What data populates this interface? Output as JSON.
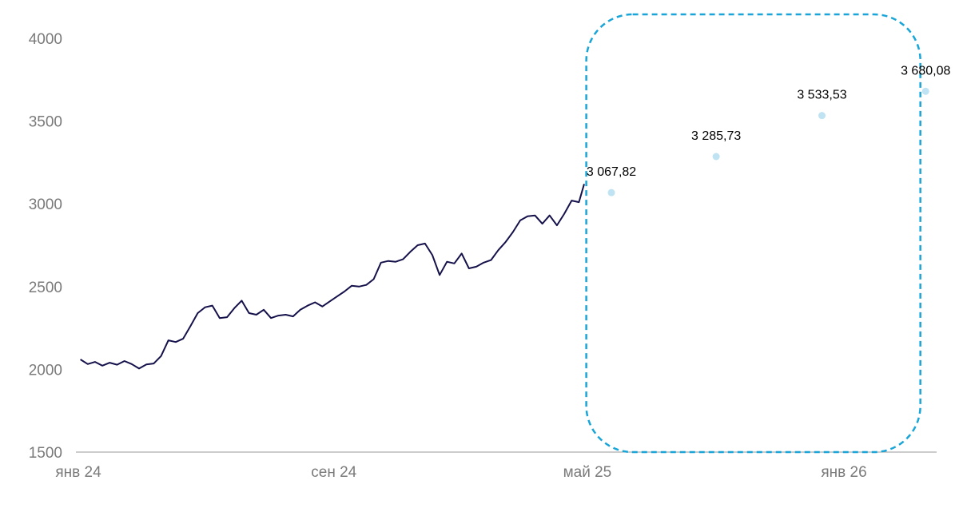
{
  "chart_data": {
    "type": "line",
    "title": "",
    "xlabel": "",
    "ylabel": "",
    "ylim": [
      1500,
      4000
    ],
    "yticks": [
      1500,
      2000,
      2500,
      3000,
      3500,
      4000
    ],
    "xticks": [
      {
        "label": "янв 24",
        "date": "2024-01-01"
      },
      {
        "label": "сен 24",
        "date": "2024-09-01"
      },
      {
        "label": "май 25",
        "date": "2025-05-01"
      },
      {
        "label": "янв 26",
        "date": "2026-01-01"
      }
    ],
    "xlim": [
      "2023-12-29",
      "2026-03-15"
    ],
    "grid": false,
    "colors": {
      "line": "#15114a",
      "forecast_point": "#bfe3f2",
      "forecast_box": "#1aa5d8",
      "axis": "#9a9a9a"
    },
    "series": [
      {
        "kind": "line",
        "points": [
          [
            "2024-01-03",
            2060
          ],
          [
            "2024-01-10",
            2032
          ],
          [
            "2024-01-17",
            2045
          ],
          [
            "2024-01-24",
            2022
          ],
          [
            "2024-01-31",
            2040
          ],
          [
            "2024-02-07",
            2028
          ],
          [
            "2024-02-14",
            2050
          ],
          [
            "2024-02-21",
            2032
          ],
          [
            "2024-02-28",
            2005
          ],
          [
            "2024-03-06",
            2030
          ],
          [
            "2024-03-13",
            2035
          ],
          [
            "2024-03-20",
            2080
          ],
          [
            "2024-03-27",
            2175
          ],
          [
            "2024-04-03",
            2165
          ],
          [
            "2024-04-10",
            2185
          ],
          [
            "2024-04-17",
            2260
          ],
          [
            "2024-04-24",
            2340
          ],
          [
            "2024-05-01",
            2375
          ],
          [
            "2024-05-08",
            2385
          ],
          [
            "2024-05-15",
            2310
          ],
          [
            "2024-05-22",
            2315
          ],
          [
            "2024-05-29",
            2370
          ],
          [
            "2024-06-05",
            2415
          ],
          [
            "2024-06-12",
            2340
          ],
          [
            "2024-06-19",
            2330
          ],
          [
            "2024-06-26",
            2360
          ],
          [
            "2024-07-03",
            2310
          ],
          [
            "2024-07-10",
            2325
          ],
          [
            "2024-07-17",
            2330
          ],
          [
            "2024-07-24",
            2320
          ],
          [
            "2024-07-31",
            2360
          ],
          [
            "2024-08-07",
            2385
          ],
          [
            "2024-08-14",
            2405
          ],
          [
            "2024-08-21",
            2380
          ],
          [
            "2024-08-28",
            2410
          ],
          [
            "2024-09-04",
            2440
          ],
          [
            "2024-09-11",
            2470
          ],
          [
            "2024-09-18",
            2505
          ],
          [
            "2024-09-25",
            2500
          ],
          [
            "2024-10-02",
            2510
          ],
          [
            "2024-10-09",
            2545
          ],
          [
            "2024-10-16",
            2645
          ],
          [
            "2024-10-23",
            2655
          ],
          [
            "2024-10-30",
            2650
          ],
          [
            "2024-11-06",
            2665
          ],
          [
            "2024-11-13",
            2710
          ],
          [
            "2024-11-20",
            2750
          ],
          [
            "2024-11-27",
            2760
          ],
          [
            "2024-12-04",
            2690
          ],
          [
            "2024-12-11",
            2570
          ],
          [
            "2024-12-18",
            2650
          ],
          [
            "2024-12-25",
            2640
          ],
          [
            "2025-01-01",
            2700
          ],
          [
            "2025-01-08",
            2610
          ],
          [
            "2025-01-15",
            2620
          ],
          [
            "2025-01-22",
            2645
          ],
          [
            "2025-01-29",
            2660
          ],
          [
            "2025-02-05",
            2720
          ],
          [
            "2025-02-12",
            2770
          ],
          [
            "2025-02-19",
            2830
          ],
          [
            "2025-02-26",
            2900
          ],
          [
            "2025-03-05",
            2925
          ],
          [
            "2025-03-12",
            2930
          ],
          [
            "2025-03-19",
            2880
          ],
          [
            "2025-03-26",
            2930
          ],
          [
            "2025-04-02",
            2870
          ],
          [
            "2025-04-09",
            2940
          ],
          [
            "2025-04-16",
            3020
          ],
          [
            "2025-04-23",
            3010
          ],
          [
            "2025-04-28",
            3120
          ]
        ]
      },
      {
        "kind": "forecast",
        "points": [
          {
            "x": "2025-05-24",
            "y": 3067.82,
            "label": "3 067,82"
          },
          {
            "x": "2025-09-01",
            "y": 3285.73,
            "label": "3 285,73"
          },
          {
            "x": "2025-12-11",
            "y": 3533.53,
            "label": "3 533,53"
          },
          {
            "x": "2026-03-20",
            "y": 3680.08,
            "label": "3 680,08"
          }
        ]
      }
    ],
    "annotations": [
      {
        "type": "dashed-rounded-box",
        "x_from": "2025-04-30",
        "x_to": "2026-03-15",
        "y_from": 1500,
        "y_to": 4000
      }
    ]
  }
}
